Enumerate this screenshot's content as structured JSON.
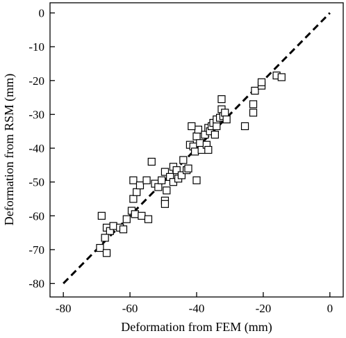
{
  "chart_data": {
    "type": "scatter",
    "xlabel": "Deformation from FEM (mm)",
    "ylabel": "Deformation from RSM (mm)",
    "xlim": [
      -84,
      4
    ],
    "ylim": [
      -84,
      3
    ],
    "x_ticks": [
      -80,
      -60,
      -40,
      -20,
      0
    ],
    "y_ticks": [
      0,
      -10,
      -20,
      -30,
      -40,
      -50,
      -60,
      -70,
      -80
    ],
    "grid": false,
    "legend": "none",
    "marker": "open-square",
    "reference_line": {
      "style": "dashed",
      "from": [
        -80,
        -80
      ],
      "to": [
        0,
        0
      ]
    },
    "points": [
      {
        "x": -68.5,
        "y": -60.0
      },
      {
        "x": -67.0,
        "y": -63.5
      },
      {
        "x": -66.0,
        "y": -64.5
      },
      {
        "x": -67.5,
        "y": -66.5
      },
      {
        "x": -69.0,
        "y": -69.5
      },
      {
        "x": -67.0,
        "y": -71.0
      },
      {
        "x": -65.0,
        "y": -63.0
      },
      {
        "x": -63.0,
        "y": -63.5
      },
      {
        "x": -62.0,
        "y": -64.0
      },
      {
        "x": -61.0,
        "y": -61.0
      },
      {
        "x": -59.5,
        "y": -58.5
      },
      {
        "x": -58.5,
        "y": -59.5
      },
      {
        "x": -59.0,
        "y": -55.0
      },
      {
        "x": -58.0,
        "y": -53.0
      },
      {
        "x": -59.0,
        "y": -49.5
      },
      {
        "x": -57.0,
        "y": -51.0
      },
      {
        "x": -55.0,
        "y": -49.5
      },
      {
        "x": -56.5,
        "y": -60.0
      },
      {
        "x": -54.5,
        "y": -61.0
      },
      {
        "x": -53.5,
        "y": -44.0
      },
      {
        "x": -52.5,
        "y": -50.5
      },
      {
        "x": -51.5,
        "y": -51.5
      },
      {
        "x": -50.5,
        "y": -49.5
      },
      {
        "x": -49.5,
        "y": -47.0
      },
      {
        "x": -49.0,
        "y": -52.5
      },
      {
        "x": -49.5,
        "y": -55.5
      },
      {
        "x": -49.5,
        "y": -56.5
      },
      {
        "x": -48.0,
        "y": -48.5
      },
      {
        "x": -47.0,
        "y": -45.5
      },
      {
        "x": -47.0,
        "y": -50.0
      },
      {
        "x": -46.0,
        "y": -46.5
      },
      {
        "x": -45.5,
        "y": -49.0
      },
      {
        "x": -44.5,
        "y": -48.0
      },
      {
        "x": -44.0,
        "y": -43.5
      },
      {
        "x": -43.0,
        "y": -46.5
      },
      {
        "x": -42.5,
        "y": -46.0
      },
      {
        "x": -42.0,
        "y": -39.0
      },
      {
        "x": -41.0,
        "y": -39.5
      },
      {
        "x": -40.5,
        "y": -41.0
      },
      {
        "x": -40.0,
        "y": -49.5
      },
      {
        "x": -40.0,
        "y": -36.5
      },
      {
        "x": -39.5,
        "y": -34.5
      },
      {
        "x": -39.0,
        "y": -38.5
      },
      {
        "x": -38.5,
        "y": -40.5
      },
      {
        "x": -37.5,
        "y": -36.0
      },
      {
        "x": -37.0,
        "y": -39.0
      },
      {
        "x": -36.5,
        "y": -40.5
      },
      {
        "x": -36.5,
        "y": -34.0
      },
      {
        "x": -36.0,
        "y": -35.0
      },
      {
        "x": -35.5,
        "y": -33.5
      },
      {
        "x": -35.0,
        "y": -32.5
      },
      {
        "x": -34.5,
        "y": -36.0
      },
      {
        "x": -34.0,
        "y": -33.5
      },
      {
        "x": -34.0,
        "y": -31.5
      },
      {
        "x": -33.0,
        "y": -31.0
      },
      {
        "x": -32.5,
        "y": -28.5
      },
      {
        "x": -32.5,
        "y": -25.5
      },
      {
        "x": -32.0,
        "y": -30.5
      },
      {
        "x": -31.5,
        "y": -29.5
      },
      {
        "x": -31.0,
        "y": -31.5
      },
      {
        "x": -41.5,
        "y": -33.5
      },
      {
        "x": -25.5,
        "y": -33.5
      },
      {
        "x": -23.0,
        "y": -29.5
      },
      {
        "x": -23.0,
        "y": -27.0
      },
      {
        "x": -22.5,
        "y": -23.0
      },
      {
        "x": -20.5,
        "y": -21.5
      },
      {
        "x": -20.5,
        "y": -20.5
      },
      {
        "x": -16.0,
        "y": -18.5
      },
      {
        "x": -14.5,
        "y": -19.0
      }
    ]
  }
}
